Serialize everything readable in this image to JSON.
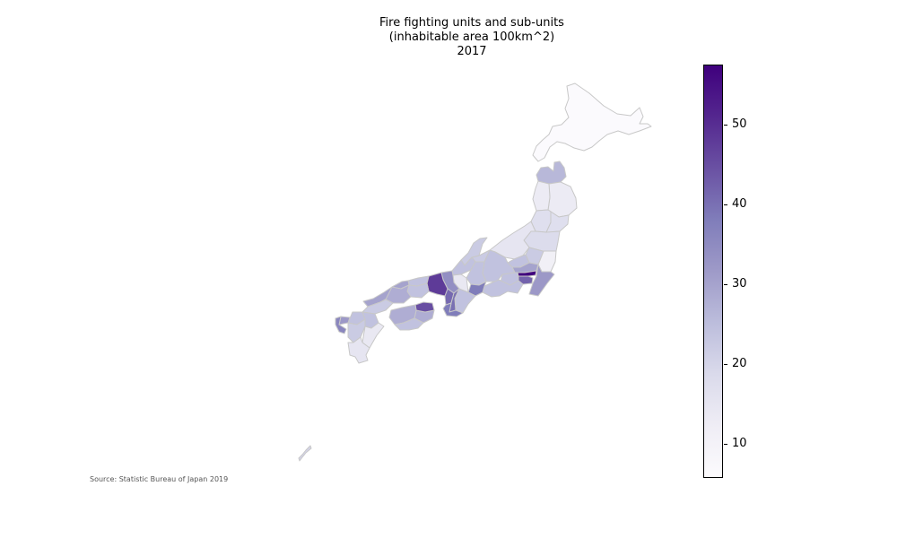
{
  "title": {
    "line1": "Fire fighting units and sub-units",
    "line2": "(inhabitable area 100km^2)",
    "line3": "2017"
  },
  "source": "Source: Statistic Bureau of Japan 2019",
  "colorbar": {
    "min": 5.7,
    "max": 57.5,
    "ticks": [
      "10",
      "20",
      "30",
      "40",
      "50"
    ],
    "colors": [
      "#fcfbfd",
      "#efedf5",
      "#dadaeb",
      "#bcbddc",
      "#9e9ac8",
      "#807dba",
      "#6a51a3",
      "#54278f",
      "#3f007d"
    ]
  },
  "chart_data": {
    "type": "choropleth",
    "title": "Fire fighting units and sub-units\n(inhabitable area 100km^2)\n2017",
    "colormap": "Purples",
    "colorbar_range": [
      5.7,
      57.5
    ],
    "colorbar_ticks": [
      10,
      20,
      30,
      40,
      50
    ],
    "regions": [
      {
        "name": "Hokkaido",
        "value": 6
      },
      {
        "name": "Aomori",
        "value": 26
      },
      {
        "name": "Iwate",
        "value": 13
      },
      {
        "name": "Akita",
        "value": 13
      },
      {
        "name": "Miyagi",
        "value": 17
      },
      {
        "name": "Yamagata",
        "value": 17
      },
      {
        "name": "Fukushima",
        "value": 18
      },
      {
        "name": "Niigata",
        "value": 15
      },
      {
        "name": "Ibaraki",
        "value": 11
      },
      {
        "name": "Tochigi",
        "value": 22
      },
      {
        "name": "Gunma",
        "value": 24
      },
      {
        "name": "Saitama",
        "value": 30
      },
      {
        "name": "Chiba",
        "value": 32
      },
      {
        "name": "Tokyo",
        "value": 57
      },
      {
        "name": "Kanagawa",
        "value": 42
      },
      {
        "name": "Toyama",
        "value": 22
      },
      {
        "name": "Ishikawa",
        "value": 22
      },
      {
        "name": "Fukui",
        "value": 24
      },
      {
        "name": "Yamanashi",
        "value": 24
      },
      {
        "name": "Nagano",
        "value": 24
      },
      {
        "name": "Gifu",
        "value": 24
      },
      {
        "name": "Shizuoka",
        "value": 24
      },
      {
        "name": "Aichi",
        "value": 38
      },
      {
        "name": "Mie",
        "value": 24
      },
      {
        "name": "Shiga",
        "value": 14
      },
      {
        "name": "Kyoto",
        "value": 34
      },
      {
        "name": "Osaka",
        "value": 41
      },
      {
        "name": "Hyogo",
        "value": 48
      },
      {
        "name": "Nara",
        "value": 40
      },
      {
        "name": "Wakayama",
        "value": 38
      },
      {
        "name": "Tottori",
        "value": 24
      },
      {
        "name": "Shimane",
        "value": 30
      },
      {
        "name": "Okayama",
        "value": 24
      },
      {
        "name": "Hiroshima",
        "value": 28
      },
      {
        "name": "Yamaguchi",
        "value": 22
      },
      {
        "name": "Tokushima",
        "value": 28
      },
      {
        "name": "Kagawa",
        "value": 45
      },
      {
        "name": "Ehime",
        "value": 28
      },
      {
        "name": "Kochi",
        "value": 24
      },
      {
        "name": "Fukuoka",
        "value": 24
      },
      {
        "name": "Saga",
        "value": 32
      },
      {
        "name": "Nagasaki",
        "value": 36
      },
      {
        "name": "Kumamoto",
        "value": 22
      },
      {
        "name": "Oita",
        "value": 24
      },
      {
        "name": "Miyazaki",
        "value": 14
      },
      {
        "name": "Kagoshima",
        "value": 15
      },
      {
        "name": "Okinawa",
        "value": 20
      }
    ]
  }
}
